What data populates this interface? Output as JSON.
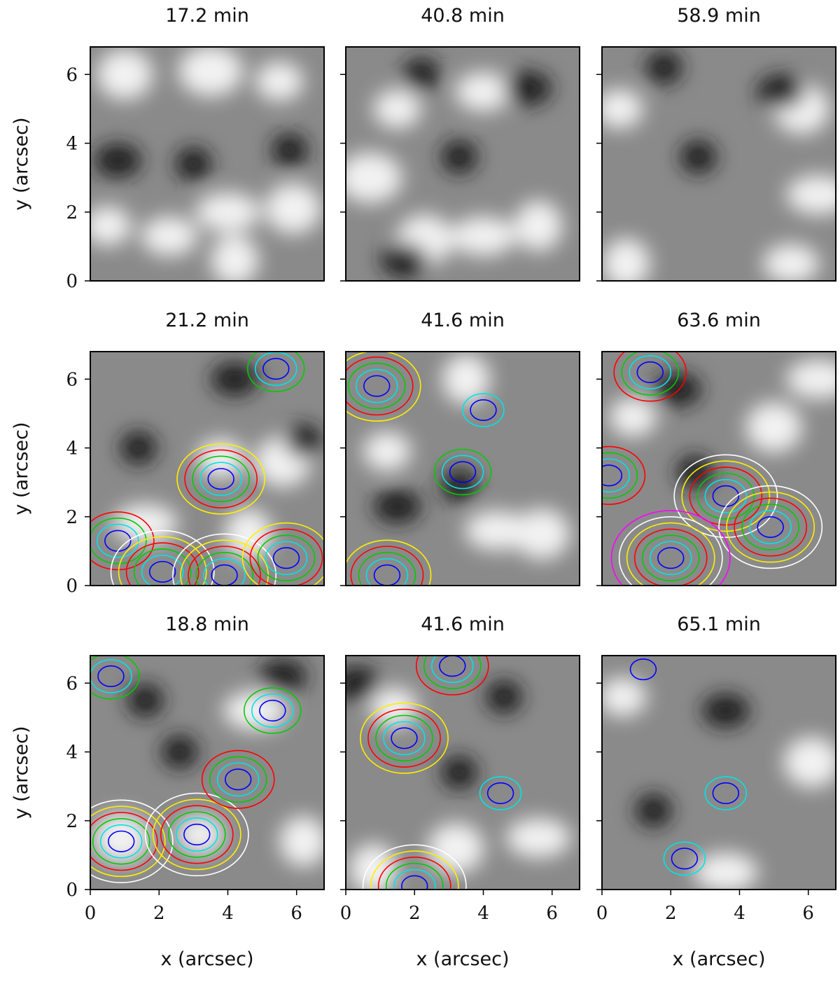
{
  "chart_data": {
    "type": "image-grid",
    "layout": {
      "rows": 3,
      "cols": 3
    },
    "xlabel": "x (arcsec)",
    "ylabel": "y (arcsec)",
    "xlim": [
      0,
      6.8
    ],
    "ylim": [
      0,
      6.8
    ],
    "xticks": [
      0,
      2,
      4,
      6
    ],
    "yticks": [
      0,
      2,
      4,
      6
    ],
    "contour_colors": [
      "#0000ff",
      "#00e5e5",
      "#00cc00",
      "#ff0000",
      "#ffee00",
      "#ffffff",
      "#ff00ff"
    ],
    "panels": [
      {
        "title": "17.2 min",
        "dark_spots": [
          [
            3.0,
            3.4
          ],
          [
            0.8,
            3.5
          ],
          [
            5.8,
            3.8
          ]
        ],
        "bright_spots": [
          [
            0.5,
            1.6
          ],
          [
            5.9,
            2.1
          ],
          [
            4.0,
            2.0
          ],
          [
            4.2,
            0.6
          ],
          [
            2.3,
            1.3
          ],
          [
            3.5,
            6.1
          ],
          [
            5.5,
            5.8
          ],
          [
            1.0,
            6.0
          ]
        ],
        "contours": []
      },
      {
        "title": "40.8 min",
        "dark_spots": [
          [
            3.3,
            3.6
          ],
          [
            5.3,
            5.6
          ],
          [
            2.2,
            6.0
          ],
          [
            1.7,
            0.6
          ]
        ],
        "bright_spots": [
          [
            1.5,
            5.0
          ],
          [
            2.3,
            1.2
          ],
          [
            4.0,
            1.3
          ],
          [
            5.6,
            1.6
          ],
          [
            4.0,
            5.5
          ],
          [
            0.7,
            3.0
          ]
        ],
        "contours": []
      },
      {
        "title": "58.9 min",
        "dark_spots": [
          [
            2.8,
            3.6
          ],
          [
            5.2,
            5.5
          ],
          [
            1.8,
            6.2
          ]
        ],
        "bright_spots": [
          [
            0.5,
            5.0
          ],
          [
            5.8,
            5.0
          ],
          [
            6.3,
            2.5
          ],
          [
            0.7,
            0.5
          ],
          [
            5.5,
            0.5
          ]
        ],
        "contours": []
      },
      {
        "title": "21.2 min",
        "dark_spots": [
          [
            1.4,
            4.0
          ],
          [
            4.2,
            6.0
          ],
          [
            6.2,
            4.2
          ]
        ],
        "bright_spots": [
          [
            3.8,
            3.7
          ],
          [
            5.6,
            3.6
          ],
          [
            1.6,
            1.8
          ],
          [
            4.6,
            1.5
          ]
        ],
        "contours": [
          {
            "cx": 0.8,
            "cy": 1.3,
            "level": [
              0.75,
              0.55,
              0.35,
              0.2
            ]
          },
          {
            "cx": 2.1,
            "cy": 0.4,
            "level": [
              0.75,
              0.55,
              0.4,
              0.28,
              0.16,
              0.08
            ]
          },
          {
            "cx": 3.9,
            "cy": 0.3,
            "level": [
              1.0,
              0.8,
              0.6,
              0.45,
              0.3,
              0.15
            ]
          },
          {
            "cx": 5.7,
            "cy": 0.8,
            "level": [
              0.9,
              0.7,
              0.5,
              0.35,
              0.2
            ]
          },
          {
            "cx": 3.8,
            "cy": 3.1,
            "level": [
              1.0,
              0.8,
              0.6,
              0.4,
              0.22
            ]
          },
          {
            "cx": 5.4,
            "cy": 6.3,
            "level": [
              0.7,
              0.5,
              0.3
            ]
          }
        ]
      },
      {
        "title": "41.6 min",
        "dark_spots": [
          [
            3.3,
            2.9
          ],
          [
            1.5,
            2.3
          ]
        ],
        "bright_spots": [
          [
            1.2,
            3.9
          ],
          [
            5.7,
            1.5
          ],
          [
            4.4,
            1.6
          ],
          [
            3.5,
            6.0
          ]
        ],
        "contours": [
          {
            "cx": 0.9,
            "cy": 5.8,
            "level": [
              0.9,
              0.7,
              0.5,
              0.35,
              0.2
            ]
          },
          {
            "cx": 3.4,
            "cy": 3.3,
            "level": [
              0.6,
              0.45,
              0.3
            ]
          },
          {
            "cx": 1.2,
            "cy": 0.3,
            "level": [
              0.8,
              0.6,
              0.42,
              0.28,
              0.15
            ]
          },
          {
            "cx": 4.0,
            "cy": 5.1,
            "level": [
              0.5,
              0.3
            ]
          }
        ]
      },
      {
        "title": "63.6 min",
        "dark_spots": [
          [
            2.7,
            3.3
          ],
          [
            2.2,
            5.7
          ]
        ],
        "bright_spots": [
          [
            0.9,
            4.9
          ],
          [
            5.0,
            4.6
          ],
          [
            6.3,
            6.0
          ]
        ],
        "contours": [
          {
            "cx": 1.4,
            "cy": 6.2,
            "level": [
              0.8,
              0.6,
              0.4,
              0.25
            ]
          },
          {
            "cx": 3.6,
            "cy": 2.6,
            "level": [
              1.0,
              0.8,
              0.6,
              0.42,
              0.28,
              0.16
            ]
          },
          {
            "cx": 4.9,
            "cy": 1.7,
            "level": [
              1.0,
              0.8,
              0.6,
              0.42,
              0.28,
              0.16
            ]
          },
          {
            "cx": 2.0,
            "cy": 0.8,
            "level": [
              1.2,
              1.0,
              0.8,
              0.6,
              0.42,
              0.28,
              0.16
            ]
          },
          {
            "cx": 0.2,
            "cy": 3.2,
            "level": [
              0.9,
              0.7,
              0.5,
              0.32
            ]
          }
        ]
      },
      {
        "title": "18.8 min",
        "dark_spots": [
          [
            1.6,
            5.5
          ],
          [
            5.6,
            6.2
          ],
          [
            2.6,
            4.0
          ]
        ],
        "bright_spots": [
          [
            3.2,
            1.6
          ],
          [
            0.9,
            1.5
          ],
          [
            4.8,
            5.2
          ],
          [
            6.2,
            1.4
          ]
        ],
        "contours": [
          {
            "cx": 0.9,
            "cy": 1.4,
            "level": [
              1.2,
              1.0,
              0.75,
              0.5,
              0.3,
              0.15
            ]
          },
          {
            "cx": 3.1,
            "cy": 1.6,
            "level": [
              1.3,
              1.05,
              0.8,
              0.55,
              0.35,
              0.2
            ]
          },
          {
            "cx": 4.3,
            "cy": 3.2,
            "level": [
              1.0,
              0.75,
              0.5,
              0.3
            ]
          },
          {
            "cx": 0.6,
            "cy": 6.2,
            "level": [
              0.8,
              0.55,
              0.35
            ]
          },
          {
            "cx": 5.3,
            "cy": 5.2,
            "level": [
              0.6,
              0.4,
              0.2
            ]
          }
        ]
      },
      {
        "title": "41.6 min",
        "dark_spots": [
          [
            3.3,
            3.4
          ],
          [
            0.3,
            6.0
          ],
          [
            4.6,
            5.6
          ]
        ],
        "bright_spots": [
          [
            1.4,
            5.3
          ],
          [
            3.2,
            1.2
          ],
          [
            5.6,
            1.5
          ],
          [
            0.8,
            0.6
          ]
        ],
        "contours": [
          {
            "cx": 2.0,
            "cy": 0.1,
            "level": [
              1.6,
              1.3,
              1.0,
              0.75,
              0.5,
              0.3
            ]
          },
          {
            "cx": 1.7,
            "cy": 4.4,
            "level": [
              1.3,
              1.0,
              0.75,
              0.5,
              0.3
            ]
          },
          {
            "cx": 3.1,
            "cy": 6.5,
            "level": [
              0.9,
              0.7,
              0.5,
              0.3
            ]
          },
          {
            "cx": 4.5,
            "cy": 2.8,
            "level": [
              0.35,
              0.2
            ]
          }
        ]
      },
      {
        "title": "65.1 min",
        "dark_spots": [
          [
            1.5,
            2.3
          ],
          [
            3.6,
            5.2
          ]
        ],
        "bright_spots": [
          [
            0.6,
            5.6
          ],
          [
            6.1,
            3.7
          ],
          [
            3.6,
            0.5
          ]
        ],
        "contours": [
          {
            "cx": 3.6,
            "cy": 2.8,
            "level": [
              0.45,
              0.3
            ]
          },
          {
            "cx": 2.4,
            "cy": 0.9,
            "level": [
              0.9,
              0.6
            ]
          },
          {
            "cx": 1.2,
            "cy": 6.4,
            "level": [
              0.12
            ]
          }
        ]
      }
    ]
  }
}
